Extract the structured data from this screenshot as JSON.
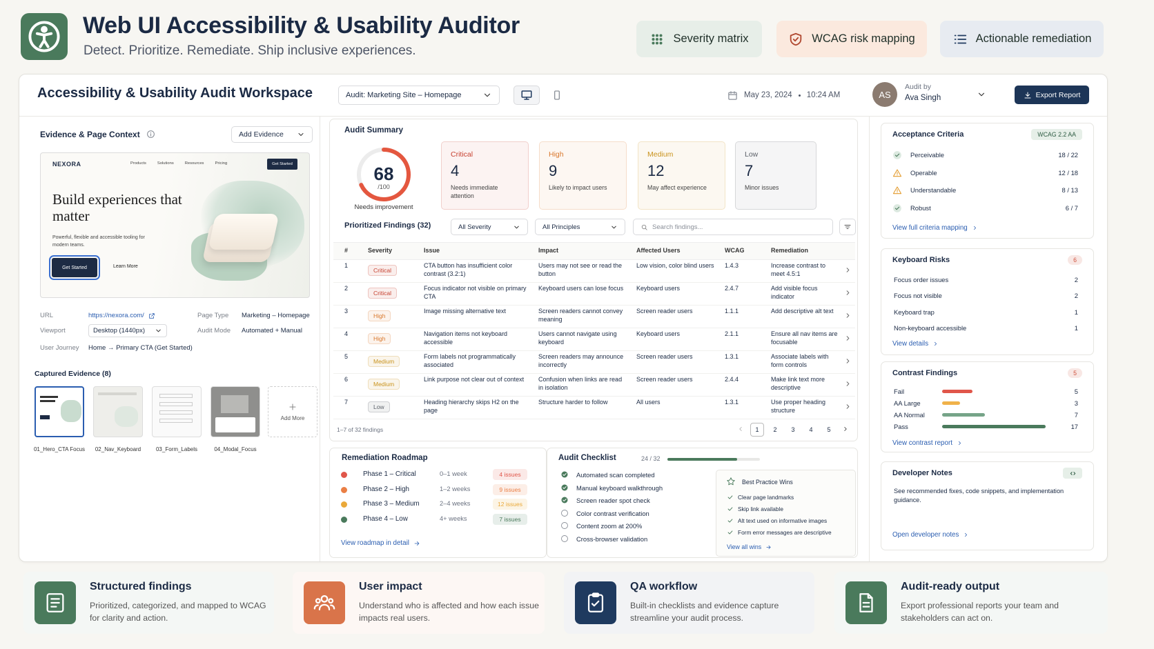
{
  "header": {
    "title": "Web UI Accessibility & Usability Auditor",
    "subtitle": "Detect. Prioritize. Remediate. Ship inclusive experiences.",
    "highlights": [
      "Severity matrix",
      "WCAG risk mapping",
      "Actionable remediation"
    ]
  },
  "workspace": {
    "title": "Accessibility & Usability Audit Workspace",
    "audit_select": "Audit: Marketing Site – Homepage",
    "date": "May 23, 2024",
    "time": "10:24 AM",
    "avatar": "AS",
    "audit_by": "Audit by",
    "auditor": "Ava Singh",
    "export": "Export Report"
  },
  "evidence": {
    "title": "Evidence & Page Context",
    "add_button": "Add Evidence",
    "preview": {
      "brand": "NEXORA",
      "nav": [
        "Products",
        "Solutions",
        "Resources",
        "Pricing"
      ],
      "nav_button": "Get Started",
      "headline": "Build experiences that matter",
      "body": "Powerful, flexible and accessible tooling for modern teams.",
      "primary": "Get Started",
      "secondary": "Learn More"
    },
    "context": [
      {
        "label": "URL",
        "value": "https://nexora.com/"
      },
      {
        "label": "Page Type",
        "value": "Marketing – Homepage"
      },
      {
        "label": "Viewport",
        "value": "Desktop (1440px)"
      },
      {
        "label": "Audit Mode",
        "value": "Automated + Manual"
      },
      {
        "label": "User Journey",
        "value": "Home → Primary CTA (Get Started)"
      }
    ],
    "captured_title": "Captured Evidence (8)",
    "captures": [
      "01_Hero_CTA Focus",
      "02_Nav_Keyboard",
      "03_Form_Labels",
      "04_Modal_Focus"
    ],
    "add_more": "Add More"
  },
  "summary": {
    "title": "Audit Summary",
    "score": 68,
    "score_max": {
      "value": 100,
      "label": "/100"
    },
    "score_caption": "Needs improvement",
    "severities": [
      {
        "label": "Critical",
        "count": 4,
        "note": "Needs immediate attention",
        "color": "#c63f2e"
      },
      {
        "label": "High",
        "count": 9,
        "note": "Likely to impact users",
        "color": "#d9772c"
      },
      {
        "label": "Medium",
        "count": 12,
        "note": "May affect experience",
        "color": "#c9921c"
      },
      {
        "label": "Low",
        "count": 7,
        "note": "Minor issues",
        "color": "#5b6068"
      }
    ]
  },
  "findings": {
    "title": "Prioritized Findings (32)",
    "filters": [
      "All Severity",
      "All Principles"
    ],
    "search": "Search findings...",
    "columns": [
      "#",
      "Severity",
      "Issue",
      "Impact",
      "Affected Users",
      "WCAG",
      "Remediation"
    ],
    "rows": [
      [
        1,
        "Critical",
        "CTA button has insufficient color contrast (3.2:1)",
        "Users may not see or read the button",
        "Low vision, color blind users",
        "1.4.3",
        "Increase contrast to meet 4.5:1"
      ],
      [
        2,
        "Critical",
        "Focus indicator not visible on primary CTA",
        "Keyboard users can lose focus",
        "Keyboard users",
        "2.4.7",
        "Add visible focus indicator"
      ],
      [
        3,
        "High",
        "Image missing alternative text",
        "Screen readers cannot convey meaning",
        "Screen reader users",
        "1.1.1",
        "Add descriptive alt text"
      ],
      [
        4,
        "High",
        "Navigation items not keyboard accessible",
        "Users cannot navigate using keyboard",
        "Keyboard users",
        "2.1.1",
        "Ensure all nav items are focusable"
      ],
      [
        5,
        "Medium",
        "Form labels not programmatically associated",
        "Screen readers may announce incorrectly",
        "Screen reader users",
        "1.3.1",
        "Associate labels with form controls"
      ],
      [
        6,
        "Medium",
        "Link purpose not clear out of context",
        "Confusion when links are read in isolation",
        "Screen reader users",
        "2.4.4",
        "Make link text more descriptive"
      ],
      [
        7,
        "Low",
        "Heading hierarchy skips H2 on the page",
        "Structure harder to follow",
        "All users",
        "1.3.1",
        "Use proper heading structure"
      ]
    ],
    "footer": "1–7 of 32 findings",
    "pages": [
      1,
      2,
      3,
      4,
      5
    ],
    "current_page": 1
  },
  "acceptance": {
    "title": "Acceptance Criteria",
    "badge": "WCAG 2.2 AA",
    "items": [
      {
        "name": "Perceivable",
        "status": "pass",
        "score": "18 / 22"
      },
      {
        "name": "Operable",
        "status": "warn",
        "score": "12 / 18"
      },
      {
        "name": "Understandable",
        "status": "warn",
        "score": "8 / 13"
      },
      {
        "name": "Robust",
        "status": "pass",
        "score": "6 / 7"
      }
    ],
    "link": "View full criteria mapping"
  },
  "keyboard": {
    "title": "Keyboard Risks",
    "count": 6,
    "items": [
      {
        "name": "Focus order issues",
        "count": 2
      },
      {
        "name": "Focus not visible",
        "count": 2
      },
      {
        "name": "Keyboard trap",
        "count": 1
      },
      {
        "name": "Non-keyboard accessible",
        "count": 1
      }
    ],
    "link": "View details"
  },
  "contrast": {
    "title": "Contrast Findings",
    "count": 5,
    "items": [
      {
        "name": "Fail",
        "value": 5,
        "color": "#e0564a"
      },
      {
        "name": "AA Large",
        "value": 3,
        "color": "#f0b24a"
      },
      {
        "name": "AA Normal",
        "value": 7,
        "color": "#76a488"
      },
      {
        "name": "Pass",
        "value": 17,
        "color": "#4a7a5c"
      }
    ],
    "link": "View contrast report"
  },
  "developer_notes": {
    "title": "Developer Notes",
    "body": "See recommended fixes, code snippets, and implementation guidance.",
    "link": "Open developer notes"
  },
  "roadmap": {
    "title": "Remediation Roadmap",
    "phases": [
      {
        "name": "Phase 1 – Critical",
        "time": "0–1 week",
        "issues": "4 issues",
        "color": "#e0564a"
      },
      {
        "name": "Phase 2 – High",
        "time": "1–2 weeks",
        "issues": "9 issues",
        "color": "#ea7f45"
      },
      {
        "name": "Phase 3 – Medium",
        "time": "2–4 weeks",
        "issues": "12 issues",
        "color": "#eaa93a"
      },
      {
        "name": "Phase 4 – Low",
        "time": "4+ weeks",
        "issues": "7 issues",
        "color": "#4a7a5c"
      }
    ],
    "link": "View roadmap in detail"
  },
  "checklist": {
    "title": "Audit Checklist",
    "progress": {
      "value": 24,
      "total": 32,
      "label": "24 / 32"
    },
    "items": [
      {
        "text": "Automated scan completed",
        "done": true
      },
      {
        "text": "Manual keyboard walkthrough",
        "done": true
      },
      {
        "text": "Screen reader spot check",
        "done": true
      },
      {
        "text": "Color contrast verification",
        "done": false
      },
      {
        "text": "Content zoom at 200%",
        "done": false
      },
      {
        "text": "Cross-browser validation",
        "done": false
      }
    ],
    "wins": {
      "title": "Best Practice Wins",
      "items": [
        "Clear page landmarks",
        "Skip link available",
        "Alt text used on informative images",
        "Form error messages are descriptive"
      ],
      "link": "View all wins"
    }
  },
  "features": [
    {
      "title": "Structured findings",
      "body": "Prioritized, categorized, and mapped to WCAG for clarity and action.",
      "color": "#4a7a5c"
    },
    {
      "title": "User impact",
      "body": "Understand who is affected and how each issue impacts real users.",
      "color": "#d9744a"
    },
    {
      "title": "QA workflow",
      "body": "Built-in checklists and evidence capture streamline your audit process.",
      "color": "#1f3a5f"
    },
    {
      "title": "Audit-ready output",
      "body": "Export professional reports your team and stakeholders can act on.",
      "color": "#4a7a5c"
    }
  ]
}
